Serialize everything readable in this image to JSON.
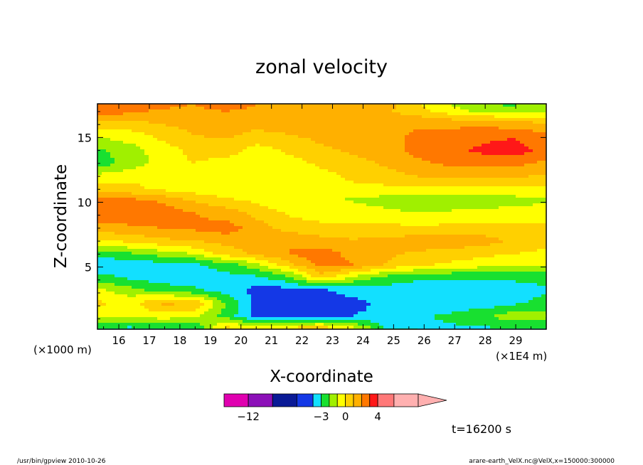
{
  "chart_data": {
    "type": "heatmap",
    "title": "zonal velocity",
    "xlabel": "X-coordinate",
    "ylabel": "Z-coordinate",
    "x_unit": "(×1E4 m)",
    "y_unit": "(×1000 m)",
    "xlim": [
      15.3,
      30.0
    ],
    "ylim": [
      0.2,
      17.6
    ],
    "x_ticks": [
      "16",
      "17",
      "18",
      "19",
      "20",
      "21",
      "22",
      "23",
      "24",
      "25",
      "26",
      "27",
      "28",
      "29"
    ],
    "y_ticks": [
      "5",
      "10",
      "15"
    ],
    "time_label": "t=16200 s",
    "colorbar": {
      "tick_labels": [
        {
          "label": "−12",
          "value": -12
        },
        {
          "label": "−3",
          "value": -3
        },
        {
          "label": "0",
          "value": 0
        },
        {
          "label": "4",
          "value": 4
        }
      ],
      "levels": [
        -15,
        -12,
        -9,
        -6,
        -4,
        -3,
        -2,
        -1,
        0,
        1,
        2,
        3,
        4,
        6,
        9
      ],
      "colors": [
        "#e000b0",
        "#8c10b8",
        "#0a1a96",
        "#1438e6",
        "#12e0ff",
        "#18e030",
        "#a0f000",
        "#ffff00",
        "#ffd000",
        "#ffb000",
        "#ff7800",
        "#ff1818",
        "#ff7878",
        "#ffb0b0"
      ]
    },
    "bands": [
      {
        "z": 17.6,
        "u": [
          3,
          3,
          2.5,
          2,
          3,
          2,
          1.5,
          1.6,
          2,
          1.5,
          0,
          -1,
          -2,
          -2.2,
          -1
        ]
      },
      {
        "z": 17.0,
        "u": [
          2.6,
          2.2,
          1.8,
          1.5,
          2,
          1.6,
          1.2,
          1.2,
          1.5,
          1.1,
          0.4,
          -0.5,
          -1.2,
          -1.5,
          -1
        ]
      },
      {
        "z": 16.2,
        "u": [
          1,
          0.8,
          1.2,
          1.3,
          1.2,
          1.3,
          1.4,
          1.4,
          1.5,
          1.6,
          1.8,
          1.5,
          1.5,
          1.2,
          0.8
        ]
      },
      {
        "z": 15.2,
        "u": [
          -0.8,
          -0.4,
          0.3,
          1.0,
          1.2,
          0.8,
          1.0,
          1.3,
          1.4,
          1.7,
          2.2,
          2.5,
          2.7,
          2.8,
          2.2
        ]
      },
      {
        "z": 14.0,
        "u": [
          -2.2,
          -1.5,
          -0.5,
          0.3,
          0.5,
          -0.5,
          0.2,
          0.8,
          1.2,
          1.6,
          2.3,
          2.8,
          3.2,
          3.6,
          2.5
        ]
      },
      {
        "z": 13.0,
        "u": [
          -2.6,
          -1.6,
          -0.6,
          0,
          -0.4,
          -0.6,
          -0.4,
          0.2,
          0.6,
          1.2,
          1.8,
          2.2,
          2.4,
          2.3,
          1.8
        ]
      },
      {
        "z": 12.0,
        "u": [
          -0.6,
          -0.3,
          -0.2,
          -0.4,
          -0.5,
          -0.4,
          -0.6,
          -0.3,
          0.2,
          0.6,
          1.0,
          1.3,
          1.2,
          1.1,
          0.9
        ]
      },
      {
        "z": 11.0,
        "u": [
          0.6,
          0.3,
          -0.2,
          -0.5,
          -0.8,
          -0.6,
          -0.5,
          -0.3,
          -0.2,
          -0.3,
          -0.4,
          -0.4,
          -0.3,
          -0.2,
          -0.4
        ]
      },
      {
        "z": 10.2,
        "u": [
          2.4,
          2.2,
          1.8,
          0.8,
          0.2,
          -0.3,
          -0.8,
          -0.9,
          -1.1,
          -1.4,
          -1.6,
          -1.5,
          -1.6,
          -1.4,
          -1.2
        ]
      },
      {
        "z": 9.2,
        "u": [
          2.8,
          2.8,
          2.6,
          2.0,
          1.5,
          0.6,
          -0.2,
          -0.5,
          -0.6,
          -0.8,
          -1.0,
          -0.9,
          -0.8,
          -0.6,
          -0.5
        ]
      },
      {
        "z": 8.0,
        "u": [
          1.5,
          1.8,
          2.0,
          2.2,
          2.5,
          1.5,
          0.5,
          0.3,
          0.4,
          0.3,
          0.2,
          0.3,
          0.4,
          0.4,
          0.3
        ]
      },
      {
        "z": 7.0,
        "u": [
          -0.2,
          0.2,
          0.7,
          1.0,
          1.3,
          1.6,
          2.0,
          1.4,
          1.1,
          1.3,
          1.6,
          1.6,
          1.5,
          0.8,
          0.4
        ]
      },
      {
        "z": 6.0,
        "u": [
          -2.6,
          -2.2,
          -1.6,
          -1.0,
          0.4,
          1.2,
          2.0,
          2.6,
          1.6,
          1.2,
          0.8,
          0.6,
          0.2,
          0,
          -0.3
        ]
      },
      {
        "z": 5.2,
        "u": [
          -3.8,
          -3.6,
          -3.4,
          -3.2,
          -2.4,
          -1.2,
          0.8,
          2.4,
          2.0,
          1.0,
          0.3,
          -0.2,
          -0.5,
          -0.8,
          -0.9
        ]
      },
      {
        "z": 4.2,
        "u": [
          -2.6,
          -3.2,
          -3.6,
          -3.6,
          -3.4,
          -3.2,
          -2.2,
          0.5,
          -1.2,
          -2.4,
          -2.8,
          -2.9,
          -2.9,
          -2.8,
          -2.6
        ]
      },
      {
        "z": 3.2,
        "u": [
          -0.8,
          -1.5,
          -2.4,
          -2.8,
          -3.4,
          -4.4,
          -4.5,
          -4.2,
          -3.6,
          -3.4,
          -3.5,
          -3.6,
          -3.6,
          -3.5,
          -3.2
        ]
      },
      {
        "z": 2.2,
        "u": [
          0.2,
          -0.4,
          1.2,
          1.0,
          -2.0,
          -4.5,
          -4.7,
          -4.6,
          -4.3,
          -3.8,
          -3.6,
          -3.6,
          -3.6,
          -3.2,
          -2.6
        ]
      },
      {
        "z": 1.2,
        "u": [
          -0.5,
          -1.0,
          -0.4,
          -0.8,
          -2.4,
          -4.4,
          -4.6,
          -4.4,
          -4.0,
          -3.6,
          -3.2,
          -2.8,
          -2.2,
          -1.4,
          -1.8
        ]
      },
      {
        "z": 0.2,
        "u": [
          -3.2,
          -3.4,
          -3.4,
          -3.2,
          0.6,
          0.2,
          0.8,
          1.2,
          -0.4,
          -3.0,
          -3.0,
          -3.2,
          -3.2,
          -3.2,
          -3.0
        ]
      }
    ]
  },
  "footer": {
    "left": "/usr/bin/gpview   2010-10-26",
    "right": "arare-earth_VelX.nc@VelX,x=150000:300000"
  }
}
